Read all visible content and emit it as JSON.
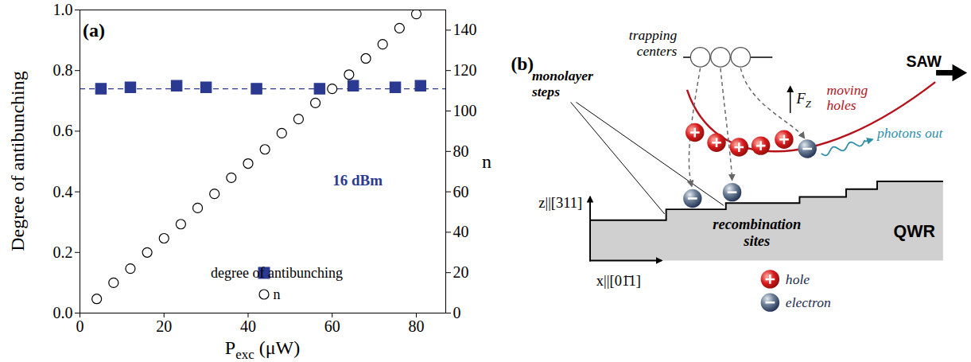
{
  "chart_data": {
    "type": "scatter",
    "panel_label": "(a)",
    "xlabel": "Pexc (μW)",
    "xlabel_subscript": "exc",
    "ylabel": "Degree of antibunching",
    "y2label": "n",
    "xlim": [
      0,
      87
    ],
    "xticks": [
      0,
      20,
      40,
      60,
      80
    ],
    "ylim": [
      0,
      1
    ],
    "yticks": [
      {
        "value": 0,
        "label": "0.0"
      },
      {
        "value": 0.2,
        "label": "0.2"
      },
      {
        "value": 0.4,
        "label": "0.4"
      },
      {
        "value": 0.6,
        "label": "0.6"
      },
      {
        "value": 0.8,
        "label": "0.8"
      },
      {
        "value": 1,
        "label": "1.0"
      }
    ],
    "y2lim": [
      0,
      150
    ],
    "y2ticks": [
      0,
      20,
      40,
      60,
      80,
      100,
      120,
      140
    ],
    "legend": "lower right",
    "series": [
      {
        "name": "degree of antibunching",
        "color": "#2b3990",
        "marker": "square",
        "x": [
          5,
          12,
          23,
          30,
          42,
          57,
          65,
          75,
          81
        ],
        "values": [
          0.74,
          0.745,
          0.75,
          0.745,
          0.74,
          0.74,
          0.75,
          0.745,
          0.75
        ]
      },
      {
        "name": "n",
        "color": "#000000",
        "marker": "circle_open",
        "axis": "y2",
        "x": [
          4,
          8,
          12,
          16,
          20,
          24,
          28,
          32,
          36,
          40,
          44,
          48,
          52,
          56,
          60,
          64,
          68,
          72,
          76,
          80
        ],
        "values": [
          7,
          15,
          22,
          30,
          37,
          44,
          52,
          59,
          67,
          74,
          81,
          89,
          96,
          104,
          111,
          118,
          126,
          133,
          141,
          148
        ]
      }
    ],
    "hlines": [
      {
        "y": 0.74,
        "color": "#2b3990",
        "line_style": "dashed"
      }
    ],
    "annotations": [
      {
        "text": "16 dBm",
        "color": "#2b3990"
      }
    ]
  },
  "diagram": {
    "panel_label": "(b)",
    "trapping_centers": "trapping centers",
    "moving_holes": "moving holes",
    "saw": "SAW",
    "force": {
      "symbol": "F",
      "subscript": "Z"
    },
    "photons": "photons out",
    "steps": "monolayer steps",
    "recombination": "recombination sites",
    "wire": "QWR",
    "z_axis": "z||[311]",
    "x_axis": "x||[01̄1]",
    "legend": [
      {
        "label": "hole",
        "color": "#d7191c"
      },
      {
        "label": "electron",
        "color": "#1f2d50"
      }
    ]
  }
}
